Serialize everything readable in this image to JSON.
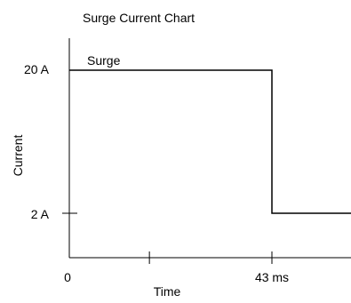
{
  "chart_data": {
    "type": "line",
    "title": "Surge Current Chart",
    "xlabel": "Time",
    "ylabel": "Current",
    "x_tick_labels": [
      "0",
      "43 ms"
    ],
    "y_tick_labels": [
      "20 A",
      "2 A"
    ],
    "series": [
      {
        "name": "Surge",
        "points": [
          {
            "x": 0,
            "y": 20
          },
          {
            "x": 43,
            "y": 20
          },
          {
            "x": 43,
            "y": 2
          },
          {
            "x": 65,
            "y": 2
          }
        ]
      }
    ],
    "x_minor_tick": 17,
    "xlim": [
      0,
      65
    ],
    "ylim": [
      0,
      20
    ],
    "grid": false,
    "line_color": "#000000"
  }
}
